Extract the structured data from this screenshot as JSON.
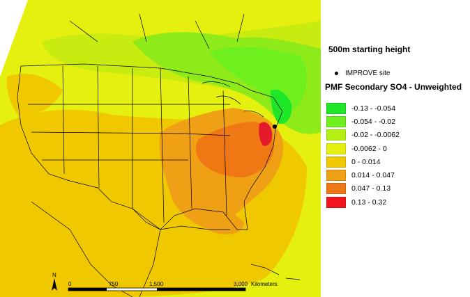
{
  "map": {
    "subtitle": "500m starting height",
    "site_legend_label": "IMPROVE site",
    "legend_title": "PMF Secondary SO4 - Unweighted",
    "legend": [
      {
        "label": "-0.13 - -0.054",
        "color": "#1ee628"
      },
      {
        "label": "-0.054 - -0.02",
        "color": "#6ef01e"
      },
      {
        "label": "-0.02 - -0.0062",
        "color": "#b4f014"
      },
      {
        "label": "-0.0062 - 0",
        "color": "#e6f00f"
      },
      {
        "label": "0 - 0.014",
        "color": "#f0c800"
      },
      {
        "label": "0.014 - 0.047",
        "color": "#f0a014"
      },
      {
        "label": "0.047 - 0.13",
        "color": "#f07814"
      },
      {
        "label": "0.13 - 0.32",
        "color": "#f0141e"
      }
    ],
    "scalebar": {
      "ticks": [
        "0",
        "750",
        "1,500",
        "3,000"
      ],
      "units": "Kilometers"
    },
    "north_label": "N"
  }
}
